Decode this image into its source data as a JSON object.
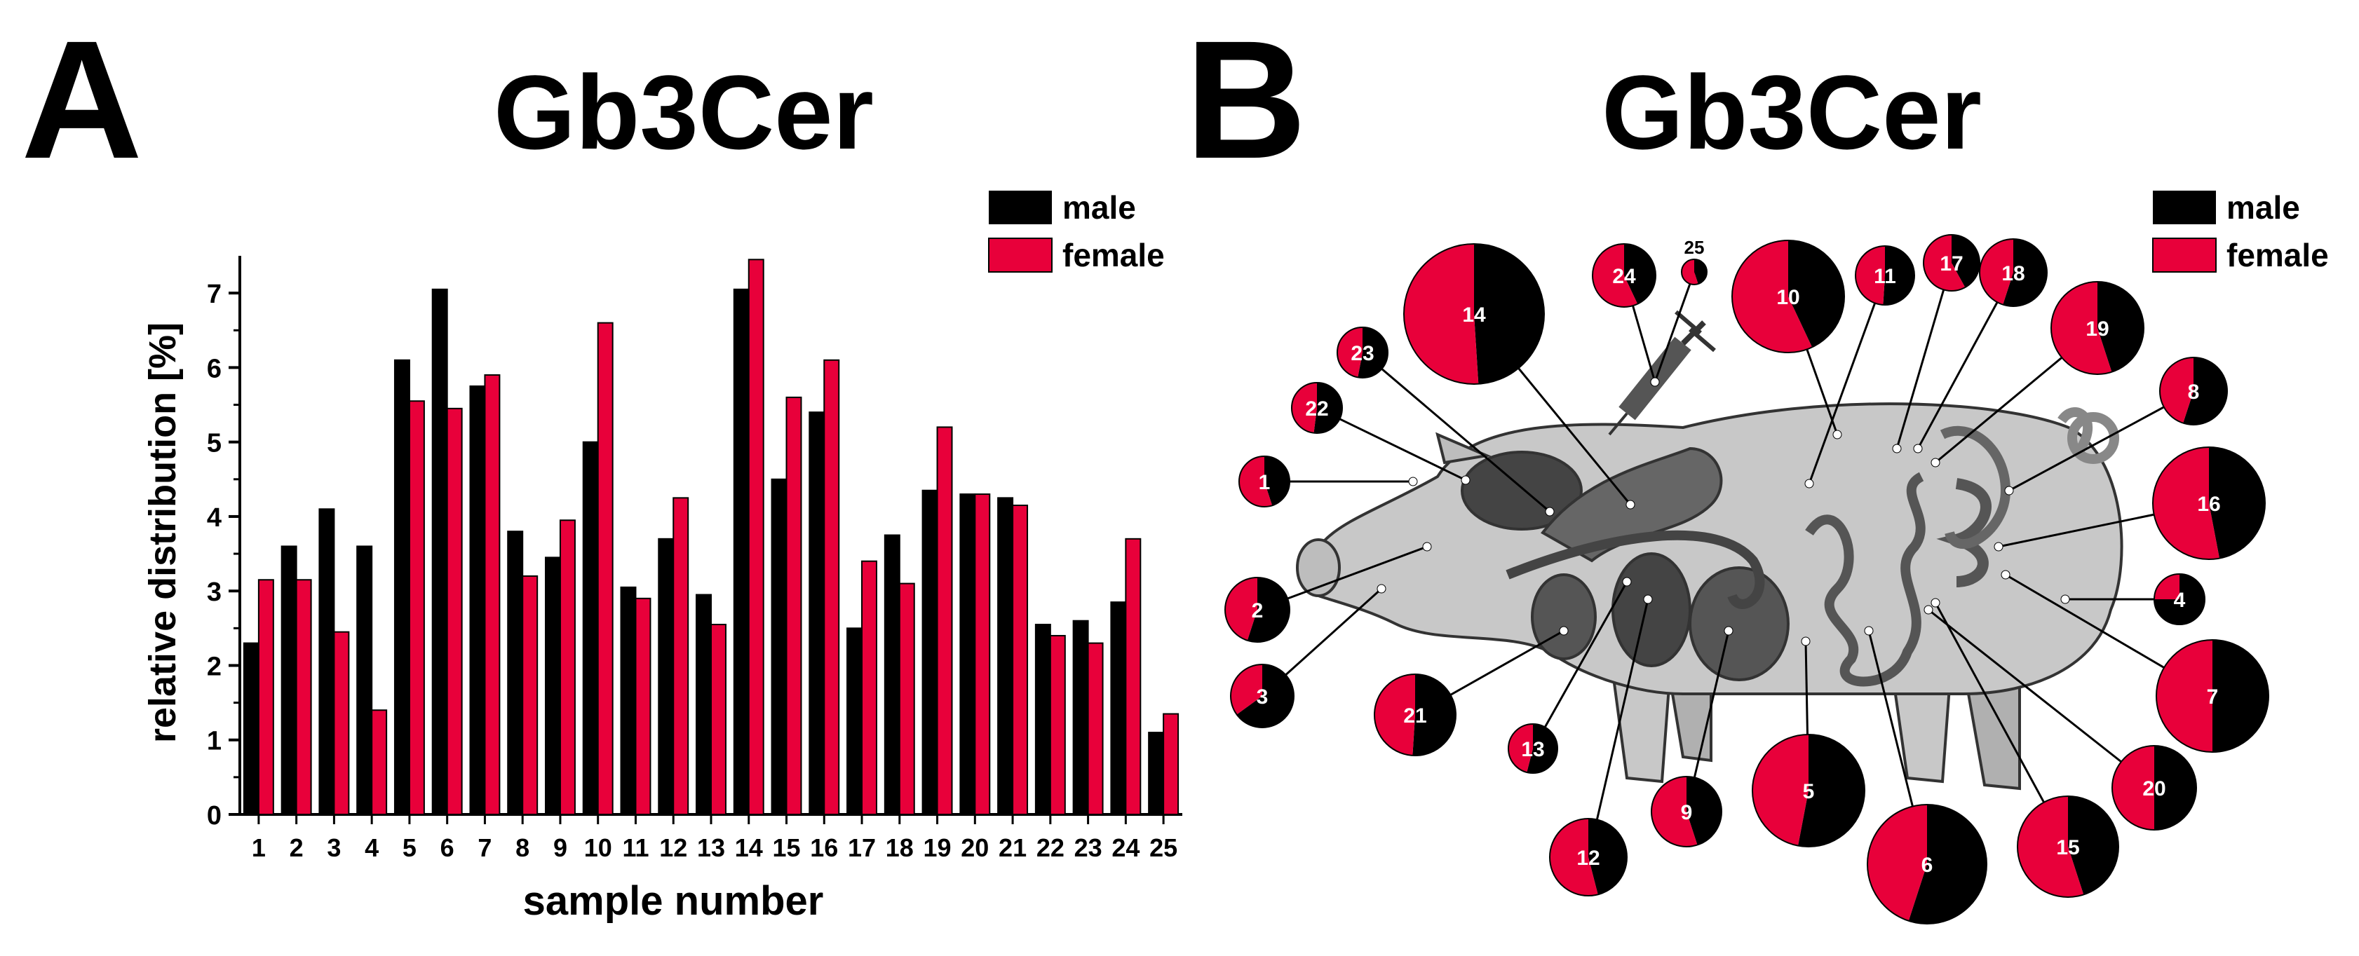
{
  "panel_a": {
    "letter": "A",
    "title": "Gb3Cer",
    "legend": {
      "male": "male",
      "female": "female"
    }
  },
  "panel_b": {
    "letter": "B",
    "title": "Gb3Cer",
    "legend": {
      "male": "male",
      "female": "female"
    }
  },
  "colors": {
    "male": "#000000",
    "female": "#e8003a",
    "body": "#c8c8c8",
    "organ": "#555555"
  },
  "chart_data": [
    {
      "type": "bar",
      "title": "Gb3Cer",
      "xlabel": "sample number",
      "ylabel": "relative distribution [%]",
      "ylim": [
        0,
        7.5
      ],
      "yticks": [
        0,
        1,
        2,
        3,
        4,
        5,
        6,
        7
      ],
      "categories": [
        "1",
        "2",
        "3",
        "4",
        "5",
        "6",
        "7",
        "8",
        "9",
        "10",
        "11",
        "12",
        "13",
        "14",
        "15",
        "16",
        "17",
        "18",
        "19",
        "20",
        "21",
        "22",
        "23",
        "24",
        "25"
      ],
      "series": [
        {
          "name": "male",
          "values": [
            2.3,
            3.6,
            4.1,
            3.6,
            6.1,
            7.05,
            5.75,
            3.8,
            3.45,
            5.0,
            3.05,
            3.7,
            2.95,
            7.05,
            4.5,
            5.4,
            2.5,
            3.75,
            4.35,
            4.3,
            4.25,
            2.55,
            2.6,
            2.85,
            1.1
          ]
        },
        {
          "name": "female",
          "values": [
            3.15,
            3.15,
            2.45,
            1.4,
            5.55,
            5.45,
            5.9,
            3.2,
            3.95,
            6.6,
            2.9,
            4.25,
            2.55,
            7.45,
            5.6,
            6.1,
            3.4,
            3.1,
            5.2,
            4.3,
            4.15,
            2.4,
            2.3,
            3.7,
            1.35
          ]
        }
      ],
      "legend_position": "top-right"
    },
    {
      "type": "pie",
      "title": "Gb3Cer",
      "note": "25 pie charts placed around a pig diagram, one per sample; pie size reflects total amount, slices show male vs female share",
      "legend_position": "top-right",
      "pies": [
        {
          "label": "1",
          "male": 0.45,
          "female": 0.55
        },
        {
          "label": "2",
          "male": 0.55,
          "female": 0.45
        },
        {
          "label": "3",
          "male": 0.65,
          "female": 0.35
        },
        {
          "label": "4",
          "male": 0.75,
          "female": 0.25
        },
        {
          "label": "5",
          "male": 0.53,
          "female": 0.47
        },
        {
          "label": "6",
          "male": 0.55,
          "female": 0.45
        },
        {
          "label": "7",
          "male": 0.5,
          "female": 0.5
        },
        {
          "label": "8",
          "male": 0.55,
          "female": 0.45
        },
        {
          "label": "9",
          "male": 0.45,
          "female": 0.55
        },
        {
          "label": "10",
          "male": 0.43,
          "female": 0.57
        },
        {
          "label": "11",
          "male": 0.51,
          "female": 0.49
        },
        {
          "label": "12",
          "male": 0.46,
          "female": 0.54
        },
        {
          "label": "13",
          "male": 0.54,
          "female": 0.46
        },
        {
          "label": "14",
          "male": 0.49,
          "female": 0.51
        },
        {
          "label": "15",
          "male": 0.45,
          "female": 0.55
        },
        {
          "label": "16",
          "male": 0.47,
          "female": 0.53
        },
        {
          "label": "17",
          "male": 0.42,
          "female": 0.58
        },
        {
          "label": "18",
          "male": 0.55,
          "female": 0.45
        },
        {
          "label": "19",
          "male": 0.45,
          "female": 0.55
        },
        {
          "label": "20",
          "male": 0.5,
          "female": 0.5
        },
        {
          "label": "21",
          "male": 0.51,
          "female": 0.49
        },
        {
          "label": "22",
          "male": 0.52,
          "female": 0.48
        },
        {
          "label": "23",
          "male": 0.53,
          "female": 0.47
        },
        {
          "label": "24",
          "male": 0.43,
          "female": 0.57
        },
        {
          "label": "25",
          "male": 0.45,
          "female": 0.55
        }
      ]
    }
  ]
}
